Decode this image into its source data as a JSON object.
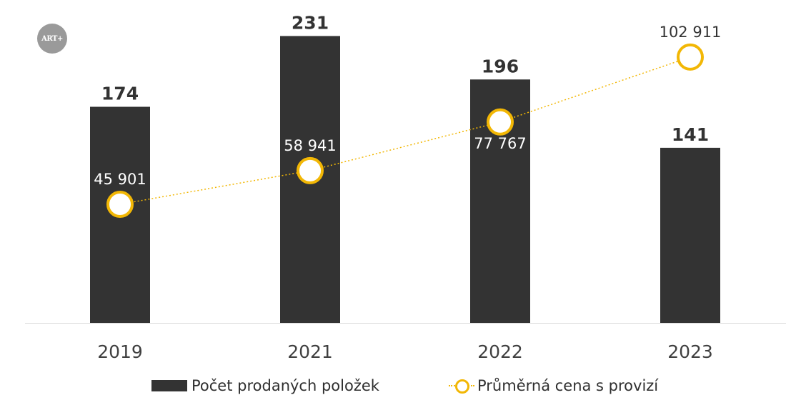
{
  "logo_text": "ART+",
  "chart_data": {
    "type": "bar",
    "categories": [
      "2019",
      "2021",
      "2022",
      "2023"
    ],
    "series": [
      {
        "name": "Počet prodaných položek",
        "kind": "bar",
        "color": "#333333",
        "values": [
          174,
          231,
          196,
          141
        ],
        "labels": [
          "174",
          "231",
          "196",
          "141"
        ]
      },
      {
        "name": "Průměrná cena s provizí",
        "kind": "line",
        "color": "#f2b705",
        "values": [
          45901,
          58941,
          77767,
          102911
        ],
        "labels": [
          "45 901",
          "58 941",
          "77 767",
          "102 911"
        ]
      }
    ],
    "ylim": [
      0,
      260
    ],
    "y2lim": [
      0,
      125000
    ],
    "legend": "bottom",
    "grid": false
  }
}
